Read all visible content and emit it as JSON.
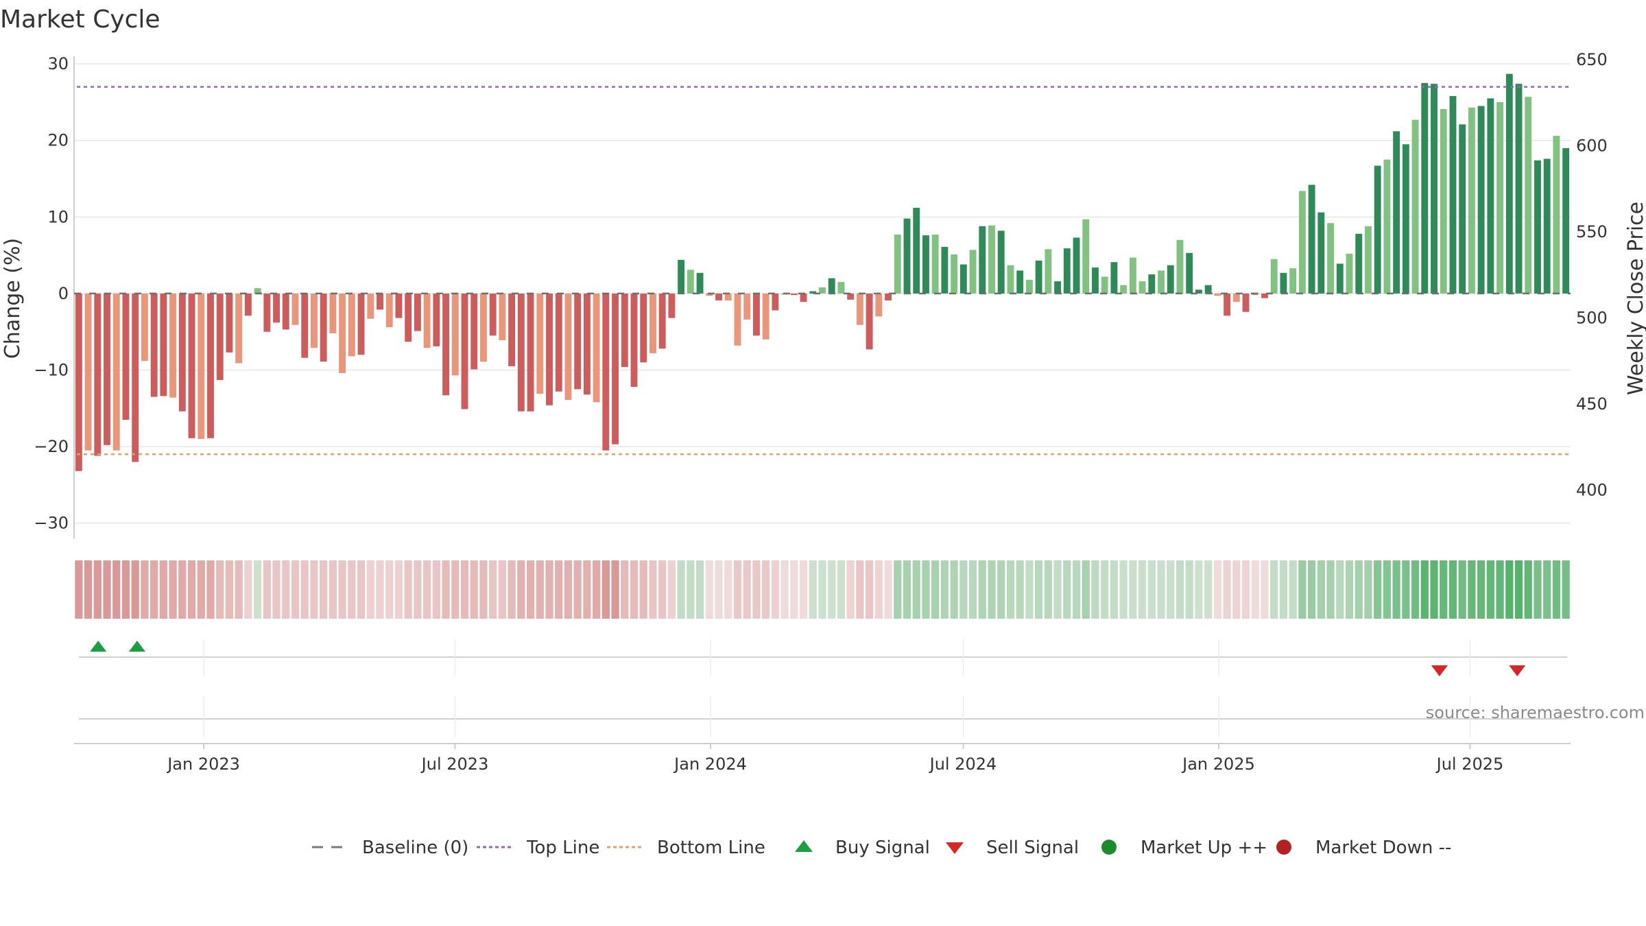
{
  "chart_data": {
    "type": "bar",
    "title": "Market Cycle",
    "ylabel": "Change (%)",
    "y2label": "Weekly Close Price",
    "ylim": [
      -32,
      31
    ],
    "y_ticks": [
      30,
      20,
      10,
      0,
      -10,
      -20,
      -30
    ],
    "y_tick_labels": [
      "30",
      "20",
      "10",
      "0",
      "−10",
      "−20",
      "−30"
    ],
    "y2lim": [
      372,
      652
    ],
    "y2_ticks": [
      650,
      600,
      550,
      500,
      450,
      400
    ],
    "y2_tick_labels": [
      "650",
      "600",
      "550",
      "500",
      "450",
      "400"
    ],
    "top_line": 27,
    "bottom_line": -21,
    "x_start": "2022-10-03",
    "x_end": "2025-09-08",
    "x_ticks": [
      {
        "date": "2023-01-01",
        "label": "Jan 2023"
      },
      {
        "date": "2023-07-01",
        "label": "Jul 2023"
      },
      {
        "date": "2024-01-01",
        "label": "Jan 2024"
      },
      {
        "date": "2024-07-01",
        "label": "Jul 2024"
      },
      {
        "date": "2025-01-01",
        "label": "Jan 2025"
      },
      {
        "date": "2025-07-01",
        "label": "Jul 2025"
      }
    ],
    "grid": true,
    "values": [
      -23.2,
      -20.5,
      -21.2,
      -19.8,
      -20.5,
      -16.5,
      -22,
      -8.8,
      -13.5,
      -13.4,
      -13.6,
      -15.4,
      -18.9,
      -19,
      -18.9,
      -11.3,
      -7.7,
      -9.1,
      -2.9,
      0.7,
      -5,
      -3.8,
      -4.7,
      -4.1,
      -8.4,
      -7.1,
      -8.9,
      -5.2,
      -10.4,
      -8.2,
      -8,
      -3.3,
      -2.1,
      -4.4,
      -3.2,
      -6.3,
      -4.9,
      -7.1,
      -6.9,
      -13.3,
      -10.7,
      -15.1,
      -9.9,
      -8.9,
      -5.5,
      -6.1,
      -9.5,
      -15.4,
      -15.4,
      -13.1,
      -14.6,
      -12.8,
      -13.9,
      -12.5,
      -13.2,
      -14.2,
      -20.5,
      -19.7,
      -9.6,
      -12.2,
      -9,
      -7.8,
      -7.2,
      -3.2,
      4.4,
      3.1,
      2.7,
      -0.3,
      -0.9,
      -0.9,
      -6.8,
      -3.4,
      -5.5,
      -6,
      -2.2,
      0,
      -0.2,
      -1.1,
      0.3,
      0.8,
      2,
      1.5,
      -0.8,
      -4.1,
      -7.3,
      -3,
      -0.9,
      7.7,
      9.8,
      11.2,
      7.6,
      7.7,
      6.1,
      5.1,
      3.8,
      5.7,
      8.8,
      8.9,
      8.2,
      3.7,
      3,
      1.8,
      4.3,
      5.8,
      1.6,
      5.9,
      7.3,
      9.7,
      3.4,
      2.2,
      4.1,
      1.1,
      4.7,
      1.6,
      2.5,
      3,
      3.7,
      7,
      5.3,
      0.5,
      1.1,
      -0.3,
      -2.9,
      -1.1,
      -2.4,
      -0.2,
      -0.6,
      4.5,
      2.7,
      3.3,
      13.4,
      14.2,
      10.6,
      9.2,
      3.9,
      5.2,
      7.8,
      8.8,
      16.7,
      17.5,
      21.2,
      19.5,
      22.7,
      27.5,
      27.4,
      24.1,
      25.8,
      22.1,
      24.3,
      24.5,
      25.5,
      25,
      28.7,
      27.4,
      25.7,
      17.4,
      17.6,
      20.6,
      19
    ],
    "shading": [
      0.62,
      0.62,
      0.62,
      0.62,
      0.62,
      0.62,
      0.62,
      0.5,
      0.5,
      0.5,
      0.5,
      0.5,
      0.5,
      0.5,
      0.5,
      0.38,
      0.38,
      0.38,
      0.22,
      -0.2,
      0.3,
      0.3,
      0.3,
      0.3,
      0.3,
      0.3,
      0.3,
      0.3,
      0.3,
      0.3,
      0.3,
      0.22,
      0.22,
      0.22,
      0.22,
      0.3,
      0.3,
      0.3,
      0.3,
      0.38,
      0.38,
      0.38,
      0.38,
      0.38,
      0.3,
      0.3,
      0.38,
      0.45,
      0.45,
      0.45,
      0.45,
      0.45,
      0.45,
      0.45,
      0.45,
      0.5,
      0.62,
      0.62,
      0.38,
      0.38,
      0.38,
      0.3,
      0.3,
      0.22,
      -0.25,
      -0.25,
      -0.25,
      0.15,
      0.15,
      0.15,
      0.28,
      0.28,
      0.28,
      0.28,
      0.22,
      0.15,
      0.15,
      0.15,
      -0.2,
      -0.2,
      -0.2,
      -0.2,
      0.2,
      0.3,
      0.3,
      0.2,
      0.15,
      -0.38,
      -0.38,
      -0.38,
      -0.38,
      -0.38,
      -0.35,
      -0.35,
      -0.3,
      -0.3,
      -0.35,
      -0.35,
      -0.35,
      -0.3,
      -0.3,
      -0.25,
      -0.3,
      -0.3,
      -0.25,
      -0.3,
      -0.3,
      -0.38,
      -0.28,
      -0.25,
      -0.25,
      -0.22,
      -0.22,
      -0.22,
      -0.22,
      -0.22,
      -0.22,
      -0.25,
      -0.25,
      -0.2,
      -0.2,
      0.15,
      0.2,
      0.2,
      0.2,
      0.15,
      0.15,
      -0.25,
      -0.25,
      -0.25,
      -0.45,
      -0.45,
      -0.4,
      -0.4,
      -0.3,
      -0.35,
      -0.4,
      -0.4,
      -0.55,
      -0.55,
      -0.6,
      -0.6,
      -0.65,
      -0.75,
      -0.75,
      -0.7,
      -0.72,
      -0.65,
      -0.7,
      -0.7,
      -0.72,
      -0.72,
      -0.78,
      -0.78,
      -0.72,
      -0.6,
      -0.6,
      -0.65,
      -0.62
    ],
    "buy_signals": [
      "2022-10-17",
      "2022-11-14"
    ],
    "sell_signals": [
      "2025-06-09",
      "2025-08-04"
    ],
    "series": [
      {
        "name": "Baseline (0)",
        "values": [
          0
        ]
      },
      {
        "name": "Top Line",
        "values": [
          27
        ]
      },
      {
        "name": "Bottom Line",
        "values": [
          -21
        ]
      }
    ],
    "legend": [
      {
        "label": "Baseline (0)",
        "marker": "dash",
        "color": "#7a7a7a"
      },
      {
        "label": "Top Line",
        "marker": "dotted",
        "color": "#9467bd"
      },
      {
        "label": "Bottom Line",
        "marker": "dotted",
        "color": "#e8a06a"
      },
      {
        "label": "Buy Signal",
        "marker": "triangle-up",
        "color": "#1a9e3f"
      },
      {
        "label": "Sell Signal",
        "marker": "triangle-down",
        "color": "#d62728"
      },
      {
        "label": "Market Up ++",
        "marker": "circle",
        "color": "#1e8a2e"
      },
      {
        "label": "Market Down --",
        "marker": "circle",
        "color": "#b22222"
      }
    ],
    "legend_position": "bottom-center",
    "source": "source: sharemaestro.com"
  },
  "colors": {
    "pos_dark": "#2e8b57",
    "pos_light": "#82c281",
    "neg_dark": "#cd5c5c",
    "neg_light": "#e9967a",
    "top_line": "#9467bd",
    "bottom_line": "#e8a06a",
    "buy": "#1a9e3f",
    "sell": "#d62728",
    "market_up": "#1e8a2e",
    "market_down": "#b22222",
    "grid": "#e6e6e6",
    "axis": "#cccccc"
  }
}
